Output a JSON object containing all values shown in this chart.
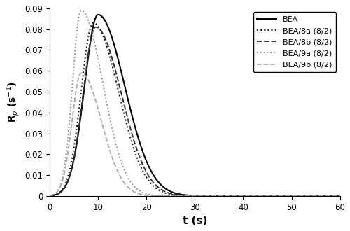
{
  "title": "",
  "xlabel": "t (s)",
  "ylabel": "R$_p$ (s$^{-1}$)",
  "xlim": [
    0,
    60
  ],
  "ylim": [
    0,
    0.09
  ],
  "yticks": [
    0,
    0.01,
    0.02,
    0.03,
    0.04,
    0.05,
    0.06,
    0.07,
    0.08,
    0.09
  ],
  "xticks": [
    0,
    10,
    20,
    30,
    40,
    50,
    60
  ],
  "series": [
    {
      "label": "BEA",
      "color": "#000000",
      "linestyle": "solid",
      "linewidth": 1.5,
      "peak": 0.087,
      "t_peak": 10.0,
      "t_rise": 2.8,
      "t_decay": 5.5
    },
    {
      "label": "BEA/8a (8/2)",
      "color": "#111111",
      "linestyle": "dotted",
      "linewidth": 1.4,
      "peak": 0.083,
      "t_peak": 9.0,
      "t_rise": 2.5,
      "t_decay": 5.2
    },
    {
      "label": "BEA/8b (8/2)",
      "color": "#333333",
      "linestyle": "dashed",
      "linewidth": 1.4,
      "peak": 0.081,
      "t_peak": 9.5,
      "t_rise": 2.6,
      "t_decay": 5.3
    },
    {
      "label": "BEA/9a (8/2)",
      "color": "#888888",
      "linestyle": "dotted",
      "linewidth": 1.3,
      "peak": 0.089,
      "t_peak": 6.5,
      "t_rise": 1.8,
      "t_decay": 4.5
    },
    {
      "label": "BEA/9b (8/2)",
      "color": "#aaaaaa",
      "linestyle": "dashed",
      "linewidth": 1.3,
      "peak": 0.059,
      "t_peak": 6.5,
      "t_rise": 1.9,
      "t_decay": 4.2
    }
  ],
  "figsize": [
    5.0,
    3.3
  ],
  "dpi": 100
}
